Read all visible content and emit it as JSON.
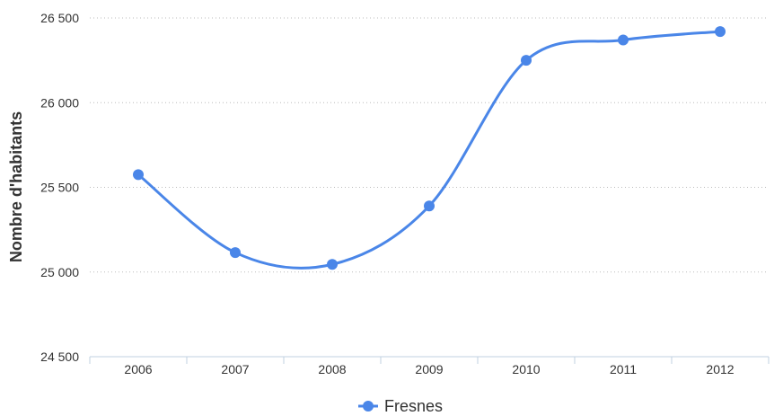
{
  "chart_data": {
    "type": "line",
    "title": "",
    "xlabel": "",
    "ylabel": "Nombre d'habitants",
    "x": [
      "2006",
      "2007",
      "2008",
      "2009",
      "2010",
      "2011",
      "2012"
    ],
    "series": [
      {
        "name": "Fresnes",
        "values": [
          25575,
          25115,
          25045,
          25390,
          26250,
          26370,
          26420
        ]
      }
    ],
    "ylim": [
      24500,
      26500
    ],
    "yticks": [
      24500,
      25000,
      25500,
      26000,
      26500
    ],
    "ytick_labels": [
      "24 500",
      "25 000",
      "25 500",
      "26 000",
      "26 500"
    ],
    "grid": "horizontal-dotted",
    "legend_position": "bottom-center",
    "colors": {
      "series": "#4a86e8",
      "grid": "#bbbbbb",
      "axis": "#c0d0e0",
      "text": "#333333"
    }
  }
}
